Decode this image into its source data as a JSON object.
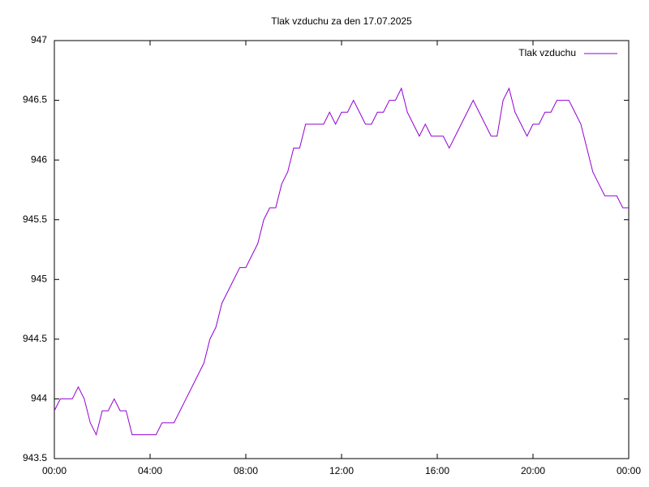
{
  "chart_data": {
    "type": "line",
    "title": "Tlak vzduchu za den 17.07.2025",
    "x": [
      0,
      0.25,
      0.5,
      0.75,
      1,
      1.25,
      1.5,
      1.75,
      2,
      2.25,
      2.5,
      2.75,
      3,
      3.25,
      3.5,
      3.75,
      4,
      4.25,
      4.5,
      4.75,
      5,
      5.25,
      5.5,
      5.75,
      6,
      6.25,
      6.5,
      6.75,
      7,
      7.25,
      7.5,
      7.75,
      8,
      8.25,
      8.5,
      8.75,
      9,
      9.25,
      9.5,
      9.75,
      10,
      10.25,
      10.5,
      10.75,
      11,
      11.25,
      11.5,
      11.75,
      12,
      12.25,
      12.5,
      12.75,
      13,
      13.25,
      13.5,
      13.75,
      14,
      14.25,
      14.5,
      14.75,
      15,
      15.25,
      15.5,
      15.75,
      16,
      16.25,
      16.5,
      16.75,
      17,
      17.25,
      17.5,
      17.75,
      18,
      18.25,
      18.5,
      18.75,
      19,
      19.25,
      19.5,
      19.75,
      20,
      20.25,
      20.5,
      20.75,
      21,
      21.25,
      21.5,
      21.75,
      22,
      22.25,
      22.5,
      22.75,
      23,
      23.25,
      23.5,
      23.75,
      24
    ],
    "series": [
      {
        "name": "Tlak vzduchu",
        "color": "#9400d3",
        "values": [
          943.9,
          944.0,
          944.0,
          944.0,
          944.1,
          944.0,
          943.8,
          943.7,
          943.9,
          943.9,
          944.0,
          943.9,
          943.9,
          943.7,
          943.7,
          943.7,
          943.7,
          943.7,
          943.8,
          943.8,
          943.8,
          943.9,
          944.0,
          944.1,
          944.2,
          944.3,
          944.5,
          944.6,
          944.8,
          944.9,
          945.0,
          945.1,
          945.1,
          945.2,
          945.3,
          945.5,
          945.6,
          945.6,
          945.8,
          945.9,
          946.1,
          946.1,
          946.3,
          946.3,
          946.3,
          946.3,
          946.4,
          946.3,
          946.4,
          946.4,
          946.5,
          946.4,
          946.3,
          946.3,
          946.4,
          946.4,
          946.5,
          946.5,
          946.6,
          946.4,
          946.3,
          946.2,
          946.3,
          946.2,
          946.2,
          946.2,
          946.1,
          946.2,
          946.3,
          946.4,
          946.5,
          946.4,
          946.3,
          946.2,
          946.2,
          946.5,
          946.6,
          946.4,
          946.3,
          946.2,
          946.3,
          946.3,
          946.4,
          946.4,
          946.5,
          946.5,
          946.5,
          946.4,
          946.3,
          946.1,
          945.9,
          945.8,
          945.7,
          945.7,
          945.7,
          945.6,
          945.6
        ]
      }
    ],
    "xlim": [
      0,
      24
    ],
    "xticks": [
      {
        "value": 0,
        "label": "00:00"
      },
      {
        "value": 4,
        "label": "04:00"
      },
      {
        "value": 8,
        "label": "08:00"
      },
      {
        "value": 12,
        "label": "12:00"
      },
      {
        "value": 16,
        "label": "16:00"
      },
      {
        "value": 20,
        "label": "20:00"
      },
      {
        "value": 24,
        "label": "00:00"
      }
    ],
    "ylim": [
      943.5,
      947
    ],
    "yticks": [
      943.5,
      944,
      944.5,
      945,
      945.5,
      946,
      946.5,
      947
    ],
    "grid": false,
    "legend": "top-right"
  }
}
